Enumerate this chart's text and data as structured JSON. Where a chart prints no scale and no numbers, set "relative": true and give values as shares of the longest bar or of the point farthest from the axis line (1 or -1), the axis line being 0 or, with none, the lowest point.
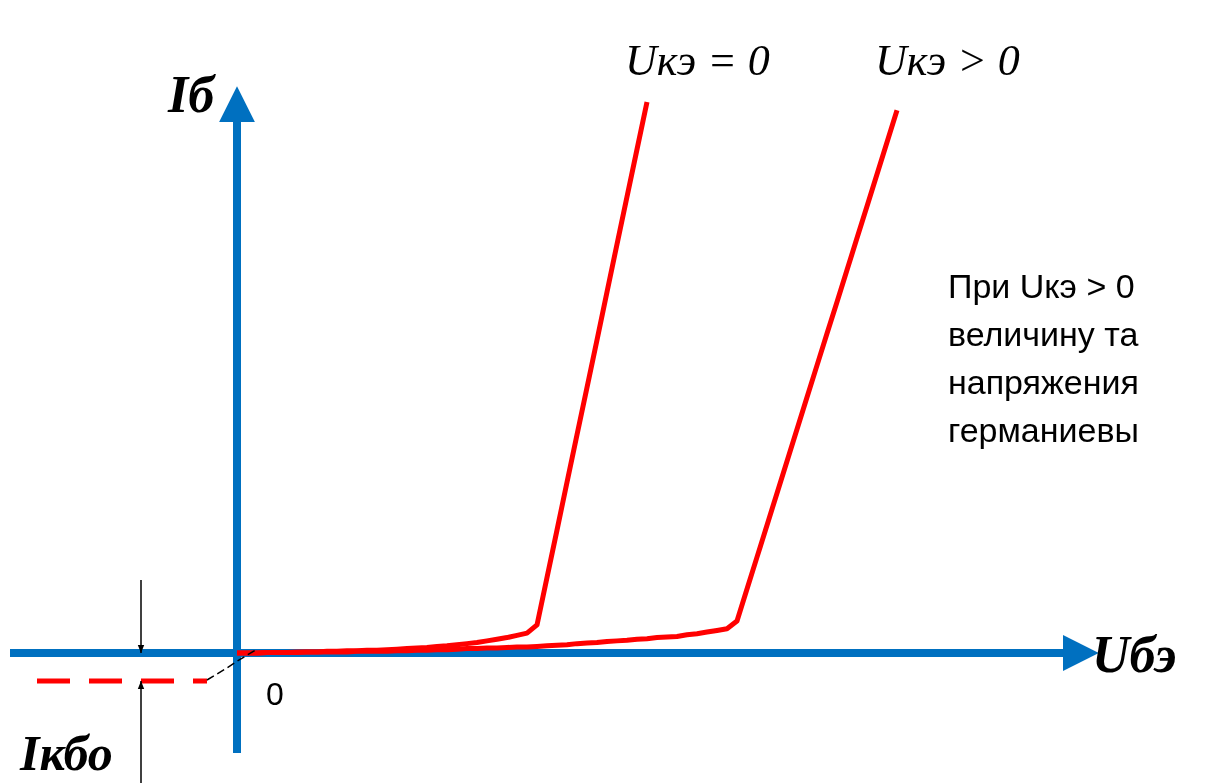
{
  "chart_data": {
    "type": "line",
    "relative": true,
    "xlabel": "Uбэ",
    "ylabel": "Iб",
    "categories": [
      null,
      null,
      null,
      null,
      null,
      null,
      null,
      null,
      null,
      null,
      null,
      null,
      null,
      null,
      null,
      null,
      null,
      null,
      null,
      null,
      null,
      null,
      null,
      null,
      null,
      null,
      null,
      null,
      null,
      null,
      null,
      null,
      null,
      null,
      null,
      null,
      null,
      null,
      null,
      null,
      null,
      null,
      null,
      null,
      null,
      null,
      null,
      null,
      null,
      null,
      null,
      null,
      null,
      null,
      null,
      null,
      null,
      null,
      null,
      null,
      null,
      null,
      null,
      null,
      null,
      null,
      null,
      null,
      null,
      null,
      null,
      null,
      null,
      null,
      null,
      null,
      null,
      null,
      null,
      null,
      null,
      null,
      null,
      null,
      null,
      null,
      null
    ],
    "series": [
      {
        "name": "Uкэ = 0",
        "color": "#ff0000",
        "values": [
          null,
          null,
          null,
          null,
          null,
          null,
          null,
          null,
          null,
          null,
          null,
          null,
          null,
          null,
          null,
          null,
          null,
          null,
          null,
          null,
          0,
          0,
          0,
          0.001,
          0.001,
          0.001,
          0.002,
          0.002,
          0.002,
          0.003,
          0.003,
          0.004,
          0.004,
          0.005,
          0.005,
          0.006,
          0.007,
          0.008,
          0.009,
          0.01,
          0.012,
          0.013,
          0.015,
          0.017,
          0.019,
          0.022,
          0.025,
          0.028,
          0.032,
          0.036,
          0.051,
          0.137,
          0.223,
          0.31,
          0.396,
          0.482,
          0.568,
          0.655,
          0.742,
          0.828,
          0.914,
          1,
          null,
          null,
          null,
          null,
          null,
          null,
          null,
          null,
          null,
          null,
          null,
          null,
          null,
          null,
          null,
          null,
          null,
          null,
          null,
          null,
          null,
          null,
          null,
          null,
          null
        ]
      },
      {
        "name": "Uкэ > 0",
        "color": "#ff0000",
        "values": [
          null,
          null,
          null,
          null,
          null,
          null,
          null,
          null,
          null,
          null,
          null,
          null,
          null,
          null,
          null,
          null,
          null,
          null,
          null,
          null,
          0,
          0,
          0,
          0.001,
          0.001,
          0.001,
          0.001,
          0.002,
          0.002,
          0.002,
          0.002,
          0.002,
          0.003,
          0.003,
          0.003,
          0.003,
          0.004,
          0.004,
          0.005,
          0.005,
          0.006,
          0.006,
          0.007,
          0.008,
          0.008,
          0.009,
          0.009,
          0.01,
          0.011,
          0.011,
          0.012,
          0.013,
          0.014,
          0.015,
          0.017,
          0.018,
          0.019,
          0.021,
          0.022,
          0.023,
          0.025,
          0.026,
          0.028,
          0.029,
          0.03,
          0.033,
          0.035,
          0.038,
          0.041,
          0.044,
          0.058,
          0.116,
          0.174,
          0.232,
          0.29,
          0.348,
          0.406,
          0.464,
          0.522,
          0.58,
          0.637,
          0.695,
          0.753,
          0.811,
          0.869,
          0.927,
          0.985
        ]
      },
      {
        "color": "#ff0000",
        "line_style": "dashed",
        "values": [
          -0.051,
          null,
          null,
          null,
          null,
          null,
          null,
          null,
          null,
          null,
          null,
          null,
          null,
          null,
          null,
          null,
          null,
          -0.051,
          null,
          null,
          null,
          null,
          null,
          null,
          null,
          null,
          null,
          null,
          null,
          null,
          null,
          null,
          null,
          null,
          null,
          null,
          null,
          null,
          null,
          null,
          null,
          null,
          null,
          null,
          null,
          null,
          null,
          null,
          null,
          null,
          null,
          null,
          null,
          null,
          null,
          null,
          null,
          null,
          null,
          null,
          null,
          null,
          null,
          null,
          null,
          null,
          null,
          null,
          null,
          null,
          null,
          null,
          null,
          null,
          null,
          null,
          null,
          null,
          null,
          null,
          null,
          null,
          null,
          null,
          null,
          null,
          null
        ]
      },
      {
        "color": "#000000",
        "line_style": "dashed",
        "values": [
          null,
          null,
          null,
          null,
          null,
          null,
          null,
          null,
          null,
          null,
          null,
          null,
          null,
          null,
          null,
          null,
          null,
          -0.049,
          -0.038,
          -0.027,
          -0.015,
          -0.004,
          0.007,
          null,
          null,
          null,
          null,
          null,
          null,
          null,
          null,
          null,
          null,
          null,
          null,
          null,
          null,
          null,
          null,
          null,
          null,
          null,
          null,
          null,
          null,
          null,
          null,
          null,
          null,
          null,
          null,
          null,
          null,
          null,
          null,
          null,
          null,
          null,
          null,
          null,
          null,
          null,
          null,
          null,
          null,
          null,
          null,
          null,
          null,
          null,
          null,
          null,
          null,
          null,
          null,
          null,
          null,
          null,
          null,
          null,
          null,
          null,
          null,
          null,
          null,
          null,
          null
        ]
      }
    ],
    "ref_lines": [
      {
        "axis": "y",
        "value": 0,
        "color": "#0070c0"
      }
    ],
    "annotations": [
      "0",
      "Iкбо",
      "При Uкэ > 0",
      "величину та",
      "напряжения",
      "германиевы"
    ]
  }
}
